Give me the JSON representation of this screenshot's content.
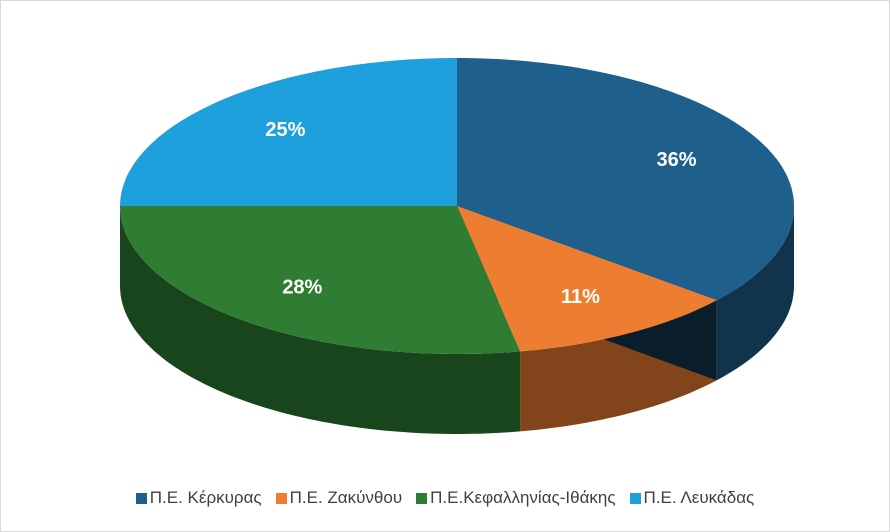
{
  "chart_data": {
    "type": "pie",
    "categories": [
      "Π.Ε. Κέρκυρας",
      "Π.Ε. Ζακύνθου",
      "Π.Ε.Κεφαλληνίας-Ιθάκης",
      "Π.Ε. Λευκάδας"
    ],
    "values": [
      36,
      11,
      28,
      25
    ],
    "value_labels": [
      "36%",
      "11%",
      "28%",
      "25%"
    ],
    "colors": [
      "#1f5f8b",
      "#ed7d31",
      "#2e7d32",
      "#1ea0dc"
    ],
    "legend": "bottom"
  }
}
